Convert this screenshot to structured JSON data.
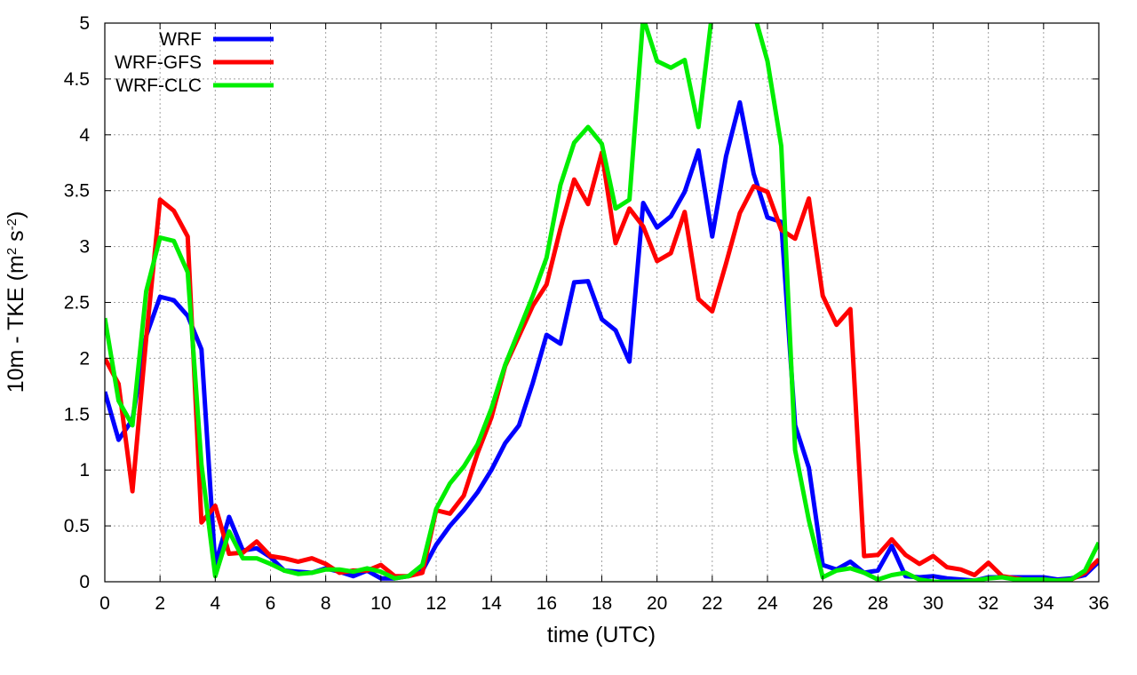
{
  "chart_data": {
    "type": "line",
    "xlabel": "time (UTC)",
    "ylabel_parts": [
      "10m - TKE (m",
      "2",
      " s",
      "-2",
      ")"
    ],
    "xlim": [
      0,
      36
    ],
    "ylim": [
      0,
      5
    ],
    "xticks": [
      0,
      2,
      4,
      6,
      8,
      10,
      12,
      14,
      16,
      18,
      20,
      22,
      24,
      26,
      28,
      30,
      32,
      34,
      36
    ],
    "yticks": [
      0,
      0.5,
      1,
      1.5,
      2,
      2.5,
      3,
      3.5,
      4,
      4.5,
      5
    ],
    "ytick_labels": [
      "0",
      "0.5",
      "1",
      "1.5",
      "2",
      "2.5",
      "3",
      "3.5",
      "4",
      "4.5",
      "5"
    ],
    "grid": true,
    "legend_position": "top-left",
    "x": [
      0,
      0.5,
      1,
      1.5,
      2,
      2.5,
      3,
      3.5,
      4,
      4.5,
      5,
      5.5,
      6,
      6.5,
      7,
      7.5,
      8,
      8.5,
      9,
      9.5,
      10,
      10.5,
      11,
      11.5,
      12,
      12.5,
      13,
      13.5,
      14,
      14.5,
      15,
      15.5,
      16,
      16.5,
      17,
      17.5,
      18,
      18.5,
      19,
      19.5,
      20,
      20.5,
      21,
      21.5,
      22,
      22.5,
      23,
      23.5,
      24,
      24.5,
      25,
      25.5,
      26,
      26.5,
      27,
      27.5,
      28,
      28.5,
      29,
      29.5,
      30,
      30.5,
      31,
      31.5,
      32,
      32.5,
      33,
      33.5,
      34,
      34.5,
      35,
      35.5,
      36
    ],
    "series": [
      {
        "name": "WRF",
        "color": "#0000ff",
        "values": [
          1.7,
          1.27,
          1.45,
          2.2,
          2.55,
          2.52,
          2.38,
          2.08,
          0.15,
          0.58,
          0.28,
          0.3,
          0.22,
          0.1,
          0.09,
          0.08,
          0.12,
          0.09,
          0.05,
          0.1,
          0.03,
          0.03,
          0.05,
          0.1,
          0.33,
          0.5,
          0.64,
          0.8,
          1.0,
          1.24,
          1.4,
          1.78,
          2.21,
          2.13,
          2.68,
          2.69,
          2.35,
          2.25,
          1.97,
          3.39,
          3.17,
          3.27,
          3.49,
          3.86,
          3.09,
          3.81,
          4.29,
          3.65,
          3.26,
          3.22,
          1.4,
          1.02,
          0.15,
          0.11,
          0.18,
          0.08,
          0.1,
          0.32,
          0.05,
          0.04,
          0.05,
          0.03,
          0.02,
          0.01,
          0.04,
          0.04,
          0.04,
          0.04,
          0.04,
          0.02,
          0.03,
          0.06,
          0.18
        ]
      },
      {
        "name": "WRF-GFS",
        "color": "#ff0000",
        "values": [
          2.0,
          1.77,
          0.81,
          2.18,
          3.42,
          3.32,
          3.09,
          0.53,
          0.68,
          0.25,
          0.26,
          0.36,
          0.23,
          0.21,
          0.18,
          0.21,
          0.16,
          0.08,
          0.1,
          0.1,
          0.15,
          0.05,
          0.05,
          0.08,
          0.64,
          0.61,
          0.77,
          1.15,
          1.47,
          1.93,
          2.2,
          2.47,
          2.66,
          3.16,
          3.6,
          3.38,
          3.84,
          3.03,
          3.34,
          3.18,
          2.87,
          2.94,
          3.31,
          2.53,
          2.42,
          2.85,
          3.3,
          3.54,
          3.49,
          3.15,
          3.07,
          3.43,
          2.56,
          2.3,
          2.44,
          0.23,
          0.24,
          0.38,
          0.24,
          0.16,
          0.23,
          0.13,
          0.11,
          0.06,
          0.17,
          0.05,
          0.03,
          0.01,
          0.01,
          0.01,
          0.02,
          0.08,
          0.2
        ]
      },
      {
        "name": "WRF-CLC",
        "color": "#00ee00",
        "values": [
          2.36,
          1.62,
          1.4,
          2.6,
          3.08,
          3.05,
          2.77,
          1.05,
          0.05,
          0.45,
          0.21,
          0.21,
          0.16,
          0.1,
          0.07,
          0.08,
          0.11,
          0.11,
          0.09,
          0.12,
          0.09,
          0.03,
          0.05,
          0.15,
          0.65,
          0.88,
          1.03,
          1.23,
          1.55,
          1.94,
          2.25,
          2.56,
          2.9,
          3.55,
          3.93,
          4.07,
          3.92,
          3.34,
          3.42,
          5.05,
          4.66,
          4.6,
          4.67,
          4.07,
          5.1,
          5.5,
          5.5,
          5.1,
          4.66,
          3.9,
          1.18,
          0.55,
          0.04,
          0.1,
          0.12,
          0.08,
          0.02,
          0.06,
          0.08,
          0.02,
          0.0,
          0.0,
          0.0,
          0.01,
          0.03,
          0.04,
          0.02,
          0.02,
          0.02,
          0.01,
          0.02,
          0.1,
          0.35
        ]
      }
    ]
  }
}
